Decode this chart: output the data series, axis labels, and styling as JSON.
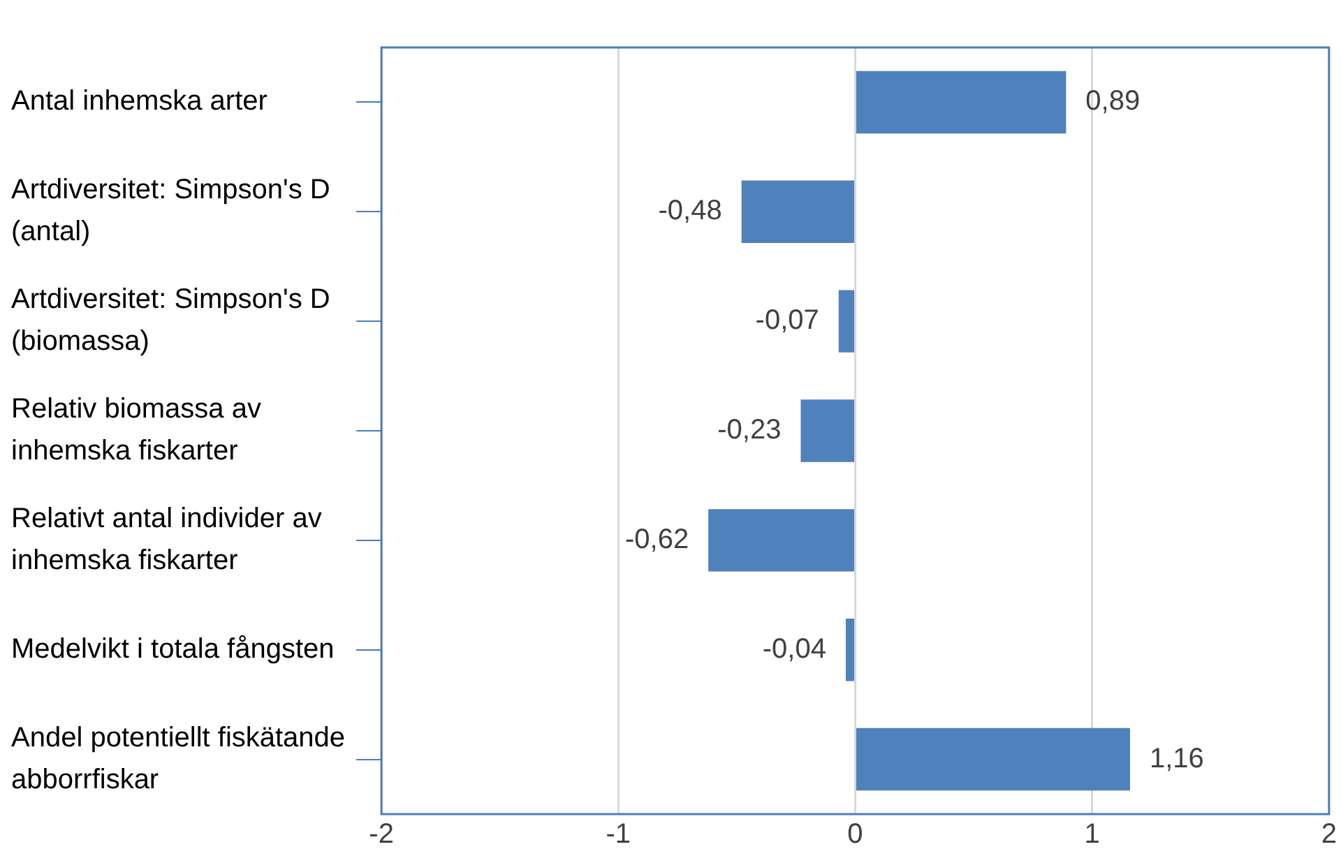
{
  "chart_data": {
    "type": "bar",
    "orientation": "horizontal",
    "categories": [
      "Antal inhemska arter",
      "Artdiversitet: Simpson's D (antal)",
      "Artdiversitet: Simpson's D (biomassa)",
      "Relativ biomassa av inhemska fiskarter",
      "Relativt antal individer av inhemska fiskarter",
      "Medelvikt i totala fångsten",
      "Andel potentiellt fiskätande abborrfiskar"
    ],
    "values": [
      0.89,
      -0.48,
      -0.07,
      -0.23,
      -0.62,
      -0.04,
      1.16
    ],
    "value_labels": [
      "0,89",
      "-0,48",
      "-0,07",
      "-0,23",
      "-0,62",
      "-0,04",
      "1,16"
    ],
    "color": "#4f81bd",
    "xlim": [
      -2,
      2
    ],
    "xticks": [
      -2,
      -1,
      0,
      1,
      2
    ],
    "grid": "x",
    "legend": false
  }
}
